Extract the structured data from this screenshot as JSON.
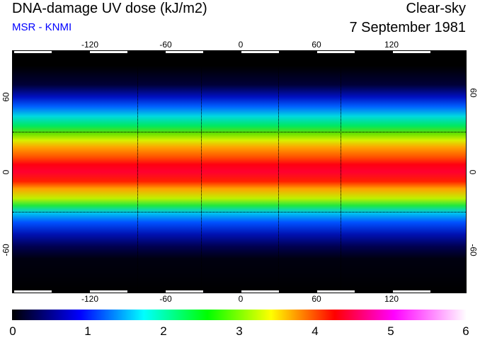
{
  "header": {
    "title": "DNA-damage UV dose (kJ/m2)",
    "source": "MSR - KNMI",
    "condition": "Clear-sky",
    "date": "7 September 1981"
  },
  "map": {
    "lon_labels": [
      "-120",
      "-60",
      "0",
      "60",
      "120"
    ],
    "lat_labels": [
      "60",
      "0",
      "-60"
    ]
  },
  "colorbar": {
    "labels": [
      "0",
      "1",
      "2",
      "3",
      "4",
      "5",
      "6"
    ],
    "unit": "kJ/m2",
    "colors": [
      "#000000",
      "#0000ff",
      "#00ffff",
      "#00ff00",
      "#ffff00",
      "#ff0000",
      "#ff00ff",
      "#ffffff"
    ]
  }
}
